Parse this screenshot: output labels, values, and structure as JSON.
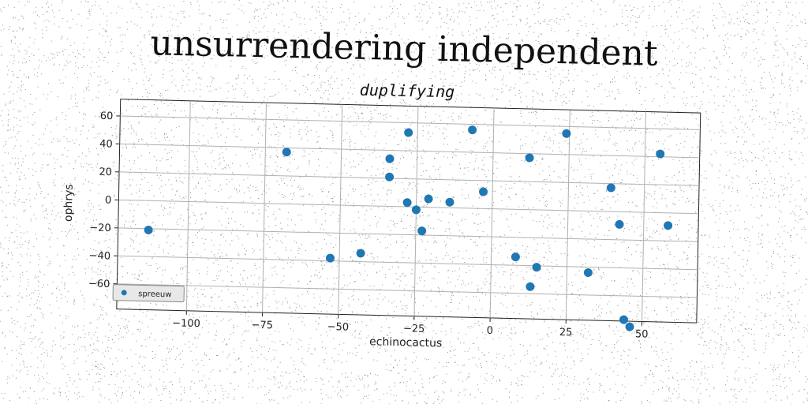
{
  "chart_data": {
    "type": "scatter",
    "title": "unsurrendering independent",
    "subtitle": "duplifying",
    "xlabel": "echinocactus",
    "ylabel": "ophrys",
    "xlim": [
      -123,
      68
    ],
    "ylim": [
      -78,
      72
    ],
    "xticks": [
      -100,
      -75,
      -50,
      -25,
      0,
      25,
      50
    ],
    "yticks": [
      -60,
      -40,
      -20,
      0,
      20,
      40,
      60
    ],
    "xtick_labels": [
      "−100",
      "−75",
      "−50",
      "−25",
      "0",
      "25",
      "50"
    ],
    "ytick_labels": [
      "−60",
      "−40",
      "−20",
      "0",
      "20",
      "40",
      "60"
    ],
    "grid": true,
    "legend_position": "bottom-left",
    "series": [
      {
        "name": "spreeuw",
        "color": "#1f77b4",
        "x": [
          -113,
          -68,
          -53,
          -43,
          -34,
          -34,
          -28,
          -28,
          -25,
          -23,
          -21,
          -14,
          -7,
          -3,
          8,
          12,
          13,
          15,
          24,
          32,
          39,
          42,
          44,
          46,
          55,
          58
        ],
        "y": [
          -21,
          37,
          -38,
          -34,
          21,
          34,
          53,
          3,
          -2,
          -17,
          6,
          4,
          56,
          12,
          -34,
          37,
          -55,
          -41,
          55,
          -44,
          17,
          -9,
          -77,
          -82,
          42,
          -9
        ]
      }
    ]
  }
}
